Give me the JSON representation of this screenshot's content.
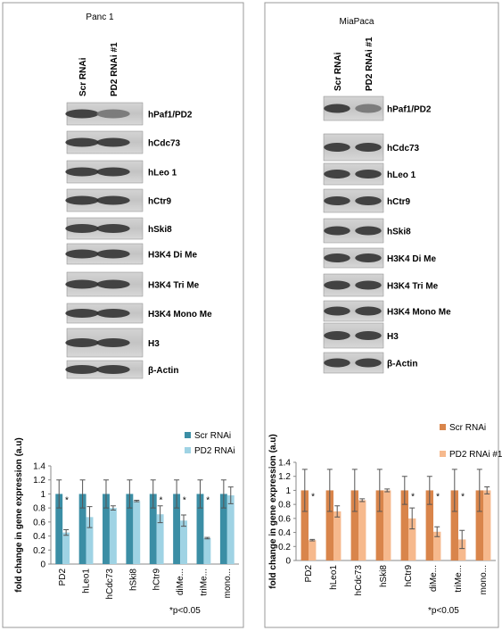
{
  "panels": [
    {
      "title": "Panc 1",
      "lanes": [
        "Scr RNAi",
        "PD2 RNAi #1"
      ],
      "blots": [
        "hPaf1/PD2",
        "hCdc73",
        "hLeo 1",
        "hCtr9",
        "hSki8",
        "H3K4 Di Me",
        "H3K4 Tri Me",
        "H3K4 Mono Me",
        "H3",
        "β-Actin"
      ]
    },
    {
      "title": "MiaPaca",
      "lanes": [
        "Scr RNAi",
        "PD2 RNAi #1"
      ],
      "blots": [
        "hPaf1/PD2",
        "hCdc73",
        "hLeo 1",
        "hCtr9",
        "hSki8",
        "H3K4 Di Me",
        "H3K4 Tri Me",
        "H3K4 Mono Me",
        "H3",
        "β-Actin"
      ]
    }
  ],
  "chart_data": [
    {
      "type": "bar",
      "y_label": "fold change in gene expression (a.u)",
      "categories": [
        "PD2",
        "hLeo1",
        "hCdc73",
        "hSki8",
        "hCtr9",
        "diMe...",
        "triMe...",
        "mono..."
      ],
      "series": [
        {
          "name": "Scr RNAi",
          "color": "#3b8ea5",
          "values": [
            1,
            1,
            1,
            1,
            1,
            1,
            1,
            1
          ],
          "errors": [
            0.2,
            0.2,
            0.2,
            0.2,
            0.2,
            0.2,
            0.2,
            0.2
          ]
        },
        {
          "name": "PD2 RNAi",
          "color": "#9fd3e4",
          "values": [
            0.45,
            0.67,
            0.8,
            0.9,
            0.71,
            0.62,
            0.37,
            0.98
          ],
          "errors": [
            0.04,
            0.15,
            0.03,
            0.01,
            0.12,
            0.08,
            0.01,
            0.12
          ]
        }
      ],
      "ylim": [
        0,
        1.4
      ],
      "yticks": [
        0,
        0.2,
        0.4,
        0.6,
        0.8,
        1,
        1.2,
        1.4
      ],
      "significance": {
        "text": "*",
        "categories": [
          "PD2",
          "hCtr9",
          "diMe...",
          "triMe..."
        ]
      },
      "annotation": "*p<0.05"
    },
    {
      "type": "bar",
      "y_label": "fold change in gene expression (a.u)",
      "categories": [
        "PD2",
        "hLeo1",
        "hCdc73",
        "hSki8",
        "hCtr9",
        "diMe...",
        "triMe...",
        "mono..."
      ],
      "series": [
        {
          "name": "Scr RNAi",
          "color": "#d9854b",
          "values": [
            1,
            1,
            1,
            1,
            1,
            1,
            1,
            1
          ],
          "errors": [
            0.3,
            0.3,
            0.3,
            0.3,
            0.2,
            0.2,
            0.3,
            0.3
          ]
        },
        {
          "name": "PD2 RNAi #1",
          "color": "#f6b98d",
          "values": [
            0.29,
            0.7,
            0.86,
            1,
            0.6,
            0.41,
            0.3,
            1
          ],
          "errors": [
            0.01,
            0.08,
            0.02,
            0.02,
            0.15,
            0.07,
            0.13,
            0.05
          ]
        }
      ],
      "ylim": [
        0,
        1.4
      ],
      "yticks": [
        0,
        0.2,
        0.4,
        0.6,
        0.8,
        1,
        1.2,
        1.4
      ],
      "significance": {
        "text": "*",
        "categories": [
          "PD2",
          "hCtr9",
          "diMe...",
          "triMe..."
        ]
      },
      "annotation": "*p<0.05"
    }
  ]
}
